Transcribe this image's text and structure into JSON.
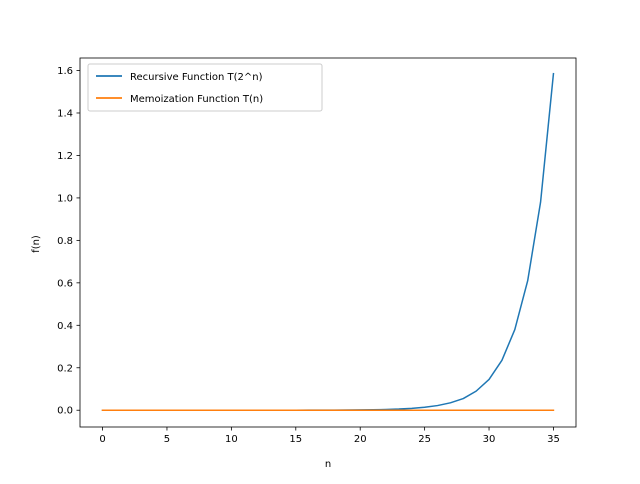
{
  "chart_data": {
    "type": "line",
    "title": "",
    "xlabel": "n",
    "ylabel": "f(n)",
    "xlim": [
      -1.75,
      36.75
    ],
    "ylim": [
      -0.079,
      1.659
    ],
    "xticks": [
      0,
      5,
      10,
      15,
      20,
      25,
      30,
      35
    ],
    "yticks": [
      0.0,
      0.2,
      0.4,
      0.6,
      0.8,
      1.0,
      1.2,
      1.4,
      1.6
    ],
    "xtick_labels": [
      "0",
      "5",
      "10",
      "15",
      "20",
      "25",
      "30",
      "35"
    ],
    "ytick_labels": [
      "0.0",
      "0.2",
      "0.4",
      "0.6",
      "0.8",
      "1.0",
      "1.2",
      "1.4",
      "1.6"
    ],
    "grid": false,
    "legend_position": "upper-left",
    "series": [
      {
        "name": "Recursive Function T(2^n)",
        "color": "#1f77b4",
        "x": [
          0,
          1,
          2,
          3,
          4,
          5,
          6,
          7,
          8,
          9,
          10,
          11,
          12,
          13,
          14,
          15,
          16,
          17,
          18,
          19,
          20,
          21,
          22,
          23,
          24,
          25,
          26,
          27,
          28,
          29,
          30,
          31,
          32,
          33,
          34,
          35
        ],
        "y": [
          0,
          0,
          0,
          0,
          0,
          0,
          0,
          0,
          0,
          0,
          0,
          0,
          0,
          0,
          0,
          0,
          0.0002,
          0.0003,
          0.0005,
          0.0008,
          0.0014,
          0.0022,
          0.0035,
          0.0055,
          0.009,
          0.014,
          0.022,
          0.035,
          0.055,
          0.09,
          0.145,
          0.235,
          0.38,
          0.61,
          0.98,
          1.585
        ]
      },
      {
        "name": "Memoization Function T(n)",
        "color": "#ff7f0e",
        "x": [
          0,
          1,
          2,
          3,
          4,
          5,
          6,
          7,
          8,
          9,
          10,
          11,
          12,
          13,
          14,
          15,
          16,
          17,
          18,
          19,
          20,
          21,
          22,
          23,
          24,
          25,
          26,
          27,
          28,
          29,
          30,
          31,
          32,
          33,
          34,
          35
        ],
        "y": [
          0,
          0,
          0,
          0,
          0,
          0,
          0,
          0,
          0,
          0,
          0,
          0,
          0,
          0,
          0,
          0,
          0,
          0,
          0,
          0,
          0,
          0,
          0,
          0,
          0,
          0,
          0,
          0,
          0,
          0,
          0,
          0,
          0,
          0,
          0,
          0
        ]
      }
    ]
  }
}
